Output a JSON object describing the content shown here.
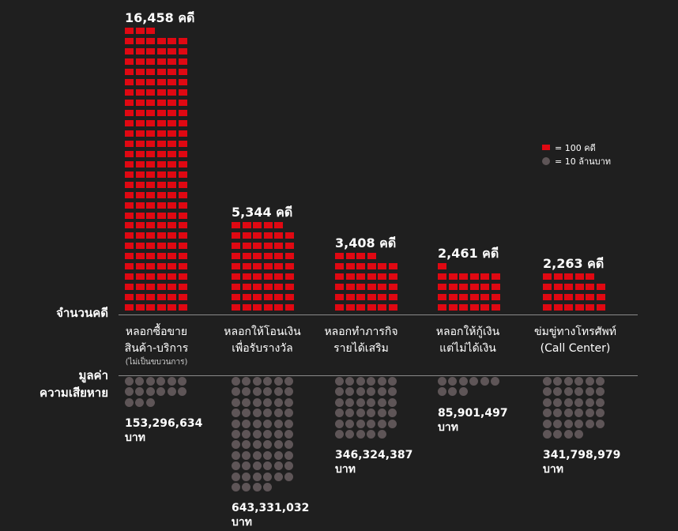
{
  "chart_data": {
    "type": "pictogram",
    "unit": {
      "square": "คดี",
      "dot": "บาท"
    },
    "legend": {
      "case_label": "= 100 คดี",
      "loss_label": "= 10 ล้านบาท"
    },
    "axis": {
      "cases_title": "จำนวนคดี",
      "loss_title_line1": "มูลค่า",
      "loss_title_line2": "ความเสียหาย"
    },
    "categories": [
      {
        "line1": "หลอกซื้อขาย",
        "line2": "สินค้า-บริการ",
        "note": "(ไม่เป็นขบวนการ)",
        "cases": 16458,
        "cases_label": "16,458 คดี",
        "loss": 153296634,
        "loss_label": "153,296,634",
        "loss_unit": "บาท"
      },
      {
        "line1": "หลอกให้โอนเงิน",
        "line2": "เพื่อรับรางวัล",
        "note": "",
        "cases": 5344,
        "cases_label": "5,344 คดี",
        "loss": 643331032,
        "loss_label": "643,331,032",
        "loss_unit": "บาท"
      },
      {
        "line1": "หลอกทำภารกิจ",
        "line2": "รายได้เสริม",
        "note": "",
        "cases": 3408,
        "cases_label": "3,408 คดี",
        "loss": 346324387,
        "loss_label": "346,324,387",
        "loss_unit": "บาท"
      },
      {
        "line1": "หลอกให้กู้เงิน",
        "line2": "แต่ไม่ได้เงิน",
        "note": "",
        "cases": 2461,
        "cases_label": "2,461 คดี",
        "loss": 85901497,
        "loss_label": "85,901,497",
        "loss_unit": "บาท"
      },
      {
        "line1": "ข่มขู่ทางโทรศัพท์",
        "line2": "(Call Center)",
        "note": "",
        "cases": 2263,
        "cases_label": "2,263 คดี",
        "loss": 341798979,
        "loss_label": "341,798,979",
        "loss_unit": "บาท"
      }
    ],
    "colors": {
      "cases": "#e00812",
      "loss": "#5e5557",
      "background": "#1f1f1f"
    }
  }
}
